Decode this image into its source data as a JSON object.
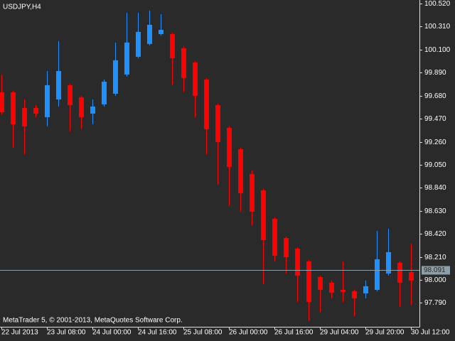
{
  "chart_data": {
    "type": "candlestick",
    "title": "USDJPY,H4",
    "footer": "MetaTrader 5, © 2001-2013, MetaQuotes Software Corp.",
    "categories": [
      "22 Jul 2013",
      null,
      null,
      null,
      "23 Jul 08:00",
      null,
      null,
      null,
      "24 Jul 00:00",
      null,
      null,
      null,
      "24 Jul 16:00",
      null,
      null,
      null,
      "25 Jul 08:00",
      null,
      null,
      null,
      "26 Jul 00:00",
      null,
      null,
      null,
      "26 Jul 16:00",
      null,
      null,
      null,
      "29 Jul 04:00",
      null,
      null,
      null,
      "29 Jul 20:00",
      null,
      null,
      null,
      "30 Jul 12:00"
    ],
    "open": [
      99.711,
      99.711,
      99.568,
      99.568,
      99.484,
      99.646,
      99.776,
      99.666,
      99.517,
      99.601,
      99.698,
      99.873,
      100.035,
      100.152,
      100.242,
      100.242,
      100.113,
      99.983,
      99.828,
      99.594,
      99.387,
      99.192,
      98.966,
      98.817,
      98.557,
      98.382,
      98.285,
      98.169,
      98.026,
      97.974,
      97.909,
      97.896,
      97.877,
      97.909,
      98.058,
      98.156,
      98.071
    ],
    "high": [
      99.873,
      99.724,
      99.646,
      99.594,
      99.905,
      100.178,
      99.789,
      99.679,
      99.646,
      99.828,
      100.165,
      100.437,
      100.437,
      100.456,
      100.424,
      100.255,
      100.132,
      99.996,
      99.841,
      99.607,
      99.4,
      99.205,
      98.998,
      98.83,
      98.57,
      98.395,
      98.298,
      98.181,
      98.039,
      97.994,
      98.169,
      97.909,
      97.994,
      98.447,
      98.467,
      98.169,
      98.331
    ],
    "low": [
      99.504,
      99.205,
      99.141,
      99.484,
      99.4,
      99.581,
      99.355,
      99.374,
      99.419,
      99.581,
      99.679,
      99.854,
      100.022,
      100.139,
      100.229,
      99.776,
      99.711,
      99.484,
      99.141,
      98.868,
      98.674,
      98.622,
      98.493,
      97.961,
      98.169,
      98.058,
      97.799,
      97.624,
      97.702,
      97.831,
      97.799,
      97.669,
      97.831,
      97.896,
      98.039,
      97.754,
      97.767
    ],
    "close": [
      99.529,
      99.419,
      99.4,
      99.517,
      99.776,
      99.905,
      99.594,
      99.484,
      99.581,
      99.808,
      100.003,
      100.165,
      100.262,
      100.327,
      100.281,
      100.022,
      99.841,
      99.679,
      99.374,
      99.257,
      99.03,
      98.791,
      98.622,
      98.363,
      98.22,
      98.207,
      98.039,
      97.799,
      97.909,
      97.883,
      97.89,
      97.831,
      97.942,
      98.188,
      98.253,
      97.974,
      97.994
    ],
    "up_color": "#1e90ff",
    "down_color": "#ff0000",
    "ylim": [
      97.572,
      100.553
    ],
    "yticks": [
      {
        "value": 100.52,
        "label": "100.520"
      },
      {
        "value": 100.31,
        "label": "100.310"
      },
      {
        "value": 100.1,
        "label": "100.100"
      },
      {
        "value": 99.89,
        "label": "99.890"
      },
      {
        "value": 99.68,
        "label": "99.680"
      },
      {
        "value": 99.47,
        "label": "99.470"
      },
      {
        "value": 99.26,
        "label": "99.260"
      },
      {
        "value": 99.05,
        "label": "99.050"
      },
      {
        "value": 98.84,
        "label": "98.840"
      },
      {
        "value": 98.63,
        "label": "98.630"
      },
      {
        "value": 98.42,
        "label": "98.420"
      },
      {
        "value": 98.21,
        "label": "98.210"
      },
      {
        "value": 98.0,
        "label": "98.000"
      },
      {
        "value": 97.79,
        "label": "97.790"
      }
    ],
    "bid_line": 98.091
  }
}
